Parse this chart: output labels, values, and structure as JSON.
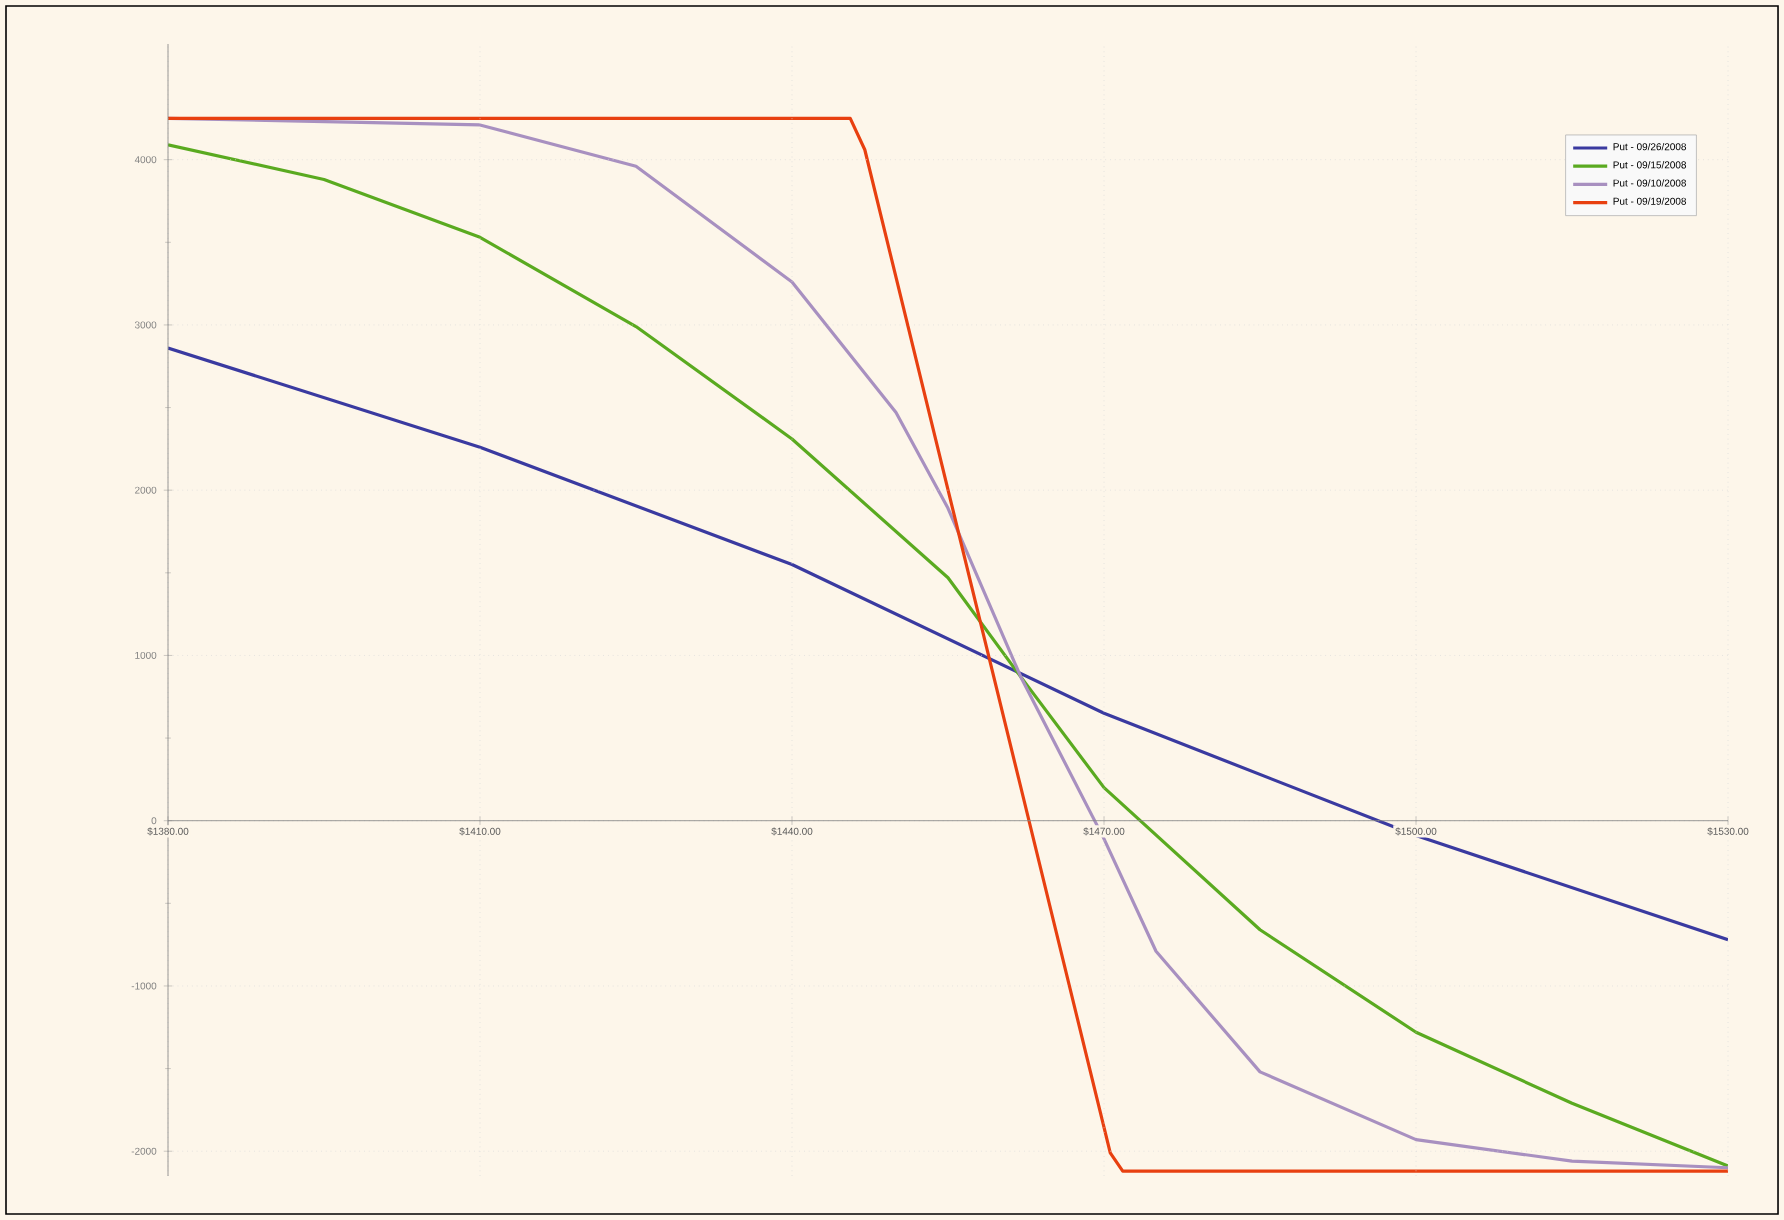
{
  "chart_data": {
    "type": "line",
    "series": [
      {
        "name": "Put - 09/26/2008",
        "color": "#3a3aa0",
        "x": [
          1380,
          1410,
          1440,
          1470,
          1500,
          1530
        ],
        "values": [
          2860,
          2260,
          1550,
          650,
          -90,
          -720
        ]
      },
      {
        "name": "Put - 09/15/2008",
        "color": "#5aaa20",
        "x": [
          1380,
          1395,
          1410,
          1425,
          1440,
          1455,
          1462,
          1470,
          1485,
          1500,
          1515,
          1530
        ],
        "values": [
          4090,
          3880,
          3530,
          2990,
          2310,
          1470,
          870,
          200,
          -660,
          -1280,
          -1710,
          -2090
        ]
      },
      {
        "name": "Put - 09/10/2008",
        "color": "#a890c0",
        "x": [
          1380,
          1410,
          1425,
          1440,
          1450,
          1455,
          1462,
          1470,
          1475,
          1485,
          1500,
          1515,
          1530
        ],
        "values": [
          4250,
          4210,
          3960,
          3260,
          2470,
          1890,
          870,
          -110,
          -790,
          -1520,
          -1930,
          -2060,
          -2100
        ]
      },
      {
        "name": "Put - 09/19/2008",
        "color": "#e84010",
        "x": [
          1380,
          1445.6,
          1447,
          1470.6,
          1471.8,
          1530
        ],
        "values": [
          4250,
          4250,
          4060,
          -2010,
          -2120,
          -2120
        ]
      }
    ],
    "xlim": [
      1380,
      1530
    ],
    "ylim": [
      -2150,
      4700
    ],
    "xticks": [
      {
        "value": 1380,
        "label": "$1380.00"
      },
      {
        "value": 1410,
        "label": "$1410.00"
      },
      {
        "value": 1440,
        "label": "$1440.00"
      },
      {
        "value": 1470,
        "label": "$1470.00"
      },
      {
        "value": 1500,
        "label": "$1500.00"
      },
      {
        "value": 1530,
        "label": "$1530.00"
      }
    ],
    "yticks": [
      -2000,
      -1000,
      0,
      1000,
      2000,
      3000,
      4000
    ],
    "grid": true,
    "legend": "top right",
    "marker": "none",
    "line_style": "solid"
  }
}
